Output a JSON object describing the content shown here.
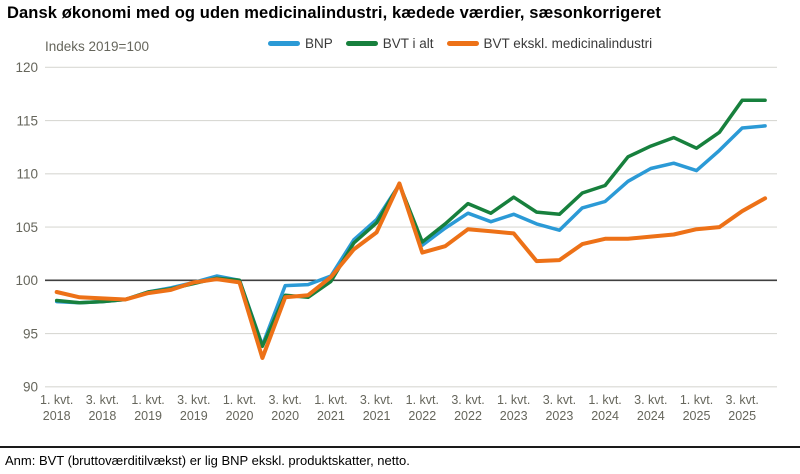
{
  "title": "Dansk økonomi med og uden medicinalindustri, kædede værdier, sæsonkorrigeret",
  "unit_label": "Indeks 2019=100",
  "footnote": "Anm: BVT (bruttoværditilvækst) er lig BNP ekskl. produktskatter, netto.",
  "colors": {
    "bnp": "#2B9AD6",
    "bvt_total": "#17803D",
    "bvt_excl": "#ED7117",
    "grid": "#D9D9D4",
    "line_100": "#3F3F3F",
    "axis_text": "#66665C",
    "legend_text": "#3A3A3A",
    "separator": "#1A1A1A"
  },
  "chart_data": {
    "type": "line",
    "title": "Dansk økonomi med og uden medicinalindustri, kædede værdier, sæsonkorrigeret",
    "ylabel": "Indeks 2019=100",
    "ylim": [
      90,
      120
    ],
    "yticks": [
      90,
      95,
      100,
      105,
      110,
      115,
      120
    ],
    "grid": "horizontal",
    "highlighted_gridline": 100,
    "legend_position": "top",
    "x_label_every": 2,
    "x": [
      "1. kvt. 2018",
      "2. kvt. 2018",
      "3. kvt. 2018",
      "4. kvt. 2018",
      "1. kvt. 2019",
      "2. kvt. 2019",
      "3. kvt. 2019",
      "4. kvt. 2019",
      "1. kvt. 2020",
      "2. kvt. 2020",
      "3. kvt. 2020",
      "4. kvt. 2020",
      "1. kvt. 2021",
      "2. kvt. 2021",
      "3. kvt. 2021",
      "4. kvt. 2021",
      "1. kvt. 2022",
      "2. kvt. 2022",
      "3. kvt. 2022",
      "4. kvt. 2022",
      "1. kvt. 2023",
      "2. kvt. 2023",
      "3. kvt. 2023",
      "4. kvt. 2023",
      "1. kvt. 2024",
      "2. kvt. 2024",
      "3. kvt. 2024",
      "4. kvt. 2024",
      "1. kvt. 2025",
      "2. kvt. 2025",
      "3. kvt. 2025",
      "4. kvt. 2025"
    ],
    "series": [
      {
        "name": "BNP",
        "color_key": "bnp",
        "values": [
          98.0,
          97.9,
          98.0,
          98.2,
          98.9,
          99.3,
          99.8,
          100.4,
          100.0,
          93.9,
          99.5,
          99.6,
          100.4,
          103.8,
          105.7,
          109.0,
          103.3,
          104.9,
          106.3,
          105.5,
          106.2,
          105.3,
          104.7,
          106.8,
          107.4,
          109.3,
          110.5,
          111.0,
          110.3,
          112.2,
          114.3,
          114.5
        ]
      },
      {
        "name": "BVT i alt",
        "color_key": "bvt_total",
        "values": [
          98.1,
          97.9,
          98.0,
          98.2,
          98.9,
          99.2,
          99.7,
          100.2,
          100.0,
          93.8,
          98.6,
          98.4,
          99.9,
          103.5,
          105.4,
          109.0,
          103.6,
          105.3,
          107.2,
          106.3,
          107.8,
          106.4,
          106.2,
          108.2,
          108.9,
          111.6,
          112.6,
          113.4,
          112.4,
          113.9,
          116.9,
          116.9
        ]
      },
      {
        "name": "BVT ekskl. medicinalindustri",
        "color_key": "bvt_excl",
        "values": [
          98.9,
          98.4,
          98.3,
          98.2,
          98.8,
          99.1,
          99.8,
          100.1,
          99.8,
          92.7,
          98.4,
          98.6,
          100.3,
          102.9,
          104.5,
          109.1,
          102.6,
          103.2,
          104.8,
          104.6,
          104.4,
          101.8,
          101.9,
          103.4,
          103.9,
          103.9,
          104.1,
          104.3,
          104.8,
          105.0,
          106.5,
          107.7
        ]
      }
    ]
  }
}
